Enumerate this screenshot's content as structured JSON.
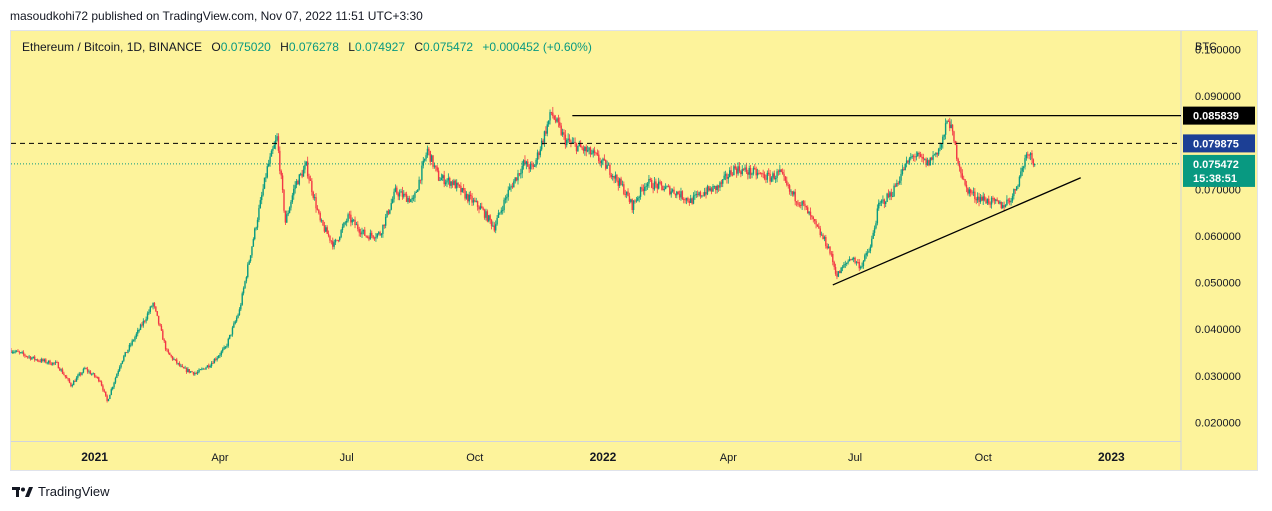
{
  "header": {
    "publish_line": "masoudkohi72 published on TradingView.com, Nov 07, 2022 11:51 UTC+3:30"
  },
  "legend": {
    "symbol": "Ethereum / Bitcoin, 1D, BINANCE",
    "o_label": "O",
    "o_value": "0.075020",
    "h_label": "H",
    "h_value": "0.076278",
    "l_label": "L",
    "l_value": "0.074927",
    "c_label": "C",
    "c_value": "0.075472",
    "change": "+0.000452 (+0.60%)"
  },
  "price_scale": {
    "currency": "BTC",
    "ticks": [
      "0.100000",
      "0.090000",
      "0.070000",
      "0.060000",
      "0.050000",
      "0.040000",
      "0.030000",
      "0.020000"
    ]
  },
  "time_scale": {
    "ticks": [
      {
        "label": "2021",
        "date": "2021-01-01",
        "bold": true
      },
      {
        "label": "Apr",
        "date": "2021-04-01",
        "bold": false
      },
      {
        "label": "Jul",
        "date": "2021-07-01",
        "bold": false
      },
      {
        "label": "Oct",
        "date": "2021-10-01",
        "bold": false
      },
      {
        "label": "2022",
        "date": "2022-01-01",
        "bold": true
      },
      {
        "label": "Apr",
        "date": "2022-04-01",
        "bold": false
      },
      {
        "label": "Jul",
        "date": "2022-07-01",
        "bold": false
      },
      {
        "label": "Oct",
        "date": "2022-10-01",
        "bold": false
      },
      {
        "label": "2023",
        "date": "2023-01-01",
        "bold": true
      }
    ]
  },
  "price_tags": {
    "resistance": {
      "label": "0.085839",
      "color": "#000000"
    },
    "dashed_level": {
      "label": "0.079875",
      "color": "#1c3f95"
    },
    "last_price": {
      "label": "0.075472",
      "countdown": "15:38:51",
      "color": "#089981"
    }
  },
  "colors": {
    "up": "#089981",
    "down": "#f23645",
    "background": "#fdf39b"
  },
  "footer": {
    "brand": "TradingView",
    "logo_icon": "tradingview-logo-icon"
  },
  "chart_data": {
    "type": "candlestick",
    "title": "Ethereum / Bitcoin, 1D, BINANCE",
    "y_unit": "BTC",
    "ylim": [
      0.016,
      0.104
    ],
    "xlim": [
      "2020-11-02",
      "2023-02-20"
    ],
    "levels": {
      "resistance": 0.085839,
      "dashed_level": 0.079875,
      "last_price": 0.075472
    },
    "trendlines": [
      {
        "name": "resistance",
        "points": [
          [
            "2021-12-10",
            0.085839
          ],
          [
            "2023-02-20",
            0.085839
          ]
        ]
      },
      {
        "name": "ascending-support",
        "points": [
          [
            "2022-06-15",
            0.0495
          ],
          [
            "2022-12-10",
            0.0725
          ]
        ]
      }
    ],
    "price_path": [
      [
        "2020-11-02",
        0.0355
      ],
      [
        "2020-11-20",
        0.0335
      ],
      [
        "2020-12-05",
        0.0325
      ],
      [
        "2020-12-15",
        0.028
      ],
      [
        "2020-12-25",
        0.0315
      ],
      [
        "2021-01-05",
        0.029
      ],
      [
        "2021-01-10",
        0.0245
      ],
      [
        "2021-01-20",
        0.033
      ],
      [
        "2021-02-05",
        0.0415
      ],
      [
        "2021-02-12",
        0.0455
      ],
      [
        "2021-02-22",
        0.035
      ],
      [
        "2021-03-05",
        0.0315
      ],
      [
        "2021-03-15",
        0.0305
      ],
      [
        "2021-03-25",
        0.0325
      ],
      [
        "2021-04-05",
        0.036
      ],
      [
        "2021-04-15",
        0.044
      ],
      [
        "2021-04-25",
        0.0595
      ],
      [
        "2021-05-05",
        0.0745
      ],
      [
        "2021-05-12",
        0.081
      ],
      [
        "2021-05-18",
        0.063
      ],
      [
        "2021-05-25",
        0.071
      ],
      [
        "2021-06-02",
        0.075
      ],
      [
        "2021-06-12",
        0.063
      ],
      [
        "2021-06-22",
        0.058
      ],
      [
        "2021-07-02",
        0.064
      ],
      [
        "2021-07-15",
        0.06
      ],
      [
        "2021-07-25",
        0.0605
      ],
      [
        "2021-08-05",
        0.0695
      ],
      [
        "2021-08-18",
        0.0675
      ],
      [
        "2021-08-28",
        0.0785
      ],
      [
        "2021-09-05",
        0.0725
      ],
      [
        "2021-09-15",
        0.0715
      ],
      [
        "2021-09-25",
        0.0685
      ],
      [
        "2021-10-05",
        0.066
      ],
      [
        "2021-10-15",
        0.062
      ],
      [
        "2021-10-25",
        0.0695
      ],
      [
        "2021-11-05",
        0.0755
      ],
      [
        "2021-11-12",
        0.0745
      ],
      [
        "2021-11-25",
        0.0865
      ],
      [
        "2021-12-05",
        0.0805
      ],
      [
        "2021-12-15",
        0.079
      ],
      [
        "2021-12-25",
        0.0775
      ],
      [
        "2022-01-05",
        0.0745
      ],
      [
        "2022-01-15",
        0.0705
      ],
      [
        "2022-01-22",
        0.0665
      ],
      [
        "2022-02-01",
        0.0715
      ],
      [
        "2022-02-12",
        0.0705
      ],
      [
        "2022-02-22",
        0.0695
      ],
      [
        "2022-03-05",
        0.0675
      ],
      [
        "2022-03-15",
        0.0695
      ],
      [
        "2022-03-25",
        0.0705
      ],
      [
        "2022-04-05",
        0.0745
      ],
      [
        "2022-04-20",
        0.0735
      ],
      [
        "2022-05-01",
        0.0725
      ],
      [
        "2022-05-08",
        0.0735
      ],
      [
        "2022-05-15",
        0.0695
      ],
      [
        "2022-05-25",
        0.0665
      ],
      [
        "2022-06-02",
        0.0625
      ],
      [
        "2022-06-12",
        0.0575
      ],
      [
        "2022-06-18",
        0.0515
      ],
      [
        "2022-06-28",
        0.0555
      ],
      [
        "2022-07-05",
        0.0535
      ],
      [
        "2022-07-12",
        0.0575
      ],
      [
        "2022-07-18",
        0.0665
      ],
      [
        "2022-07-28",
        0.0695
      ],
      [
        "2022-08-05",
        0.0745
      ],
      [
        "2022-08-12",
        0.0775
      ],
      [
        "2022-08-22",
        0.0755
      ],
      [
        "2022-09-01",
        0.0795
      ],
      [
        "2022-09-06",
        0.0855
      ],
      [
        "2022-09-12",
        0.0775
      ],
      [
        "2022-09-18",
        0.0705
      ],
      [
        "2022-09-25",
        0.0685
      ],
      [
        "2022-10-05",
        0.0675
      ],
      [
        "2022-10-15",
        0.0665
      ],
      [
        "2022-10-22",
        0.0685
      ],
      [
        "2022-10-28",
        0.0735
      ],
      [
        "2022-11-02",
        0.0785
      ],
      [
        "2022-11-07",
        0.075472
      ]
    ]
  }
}
